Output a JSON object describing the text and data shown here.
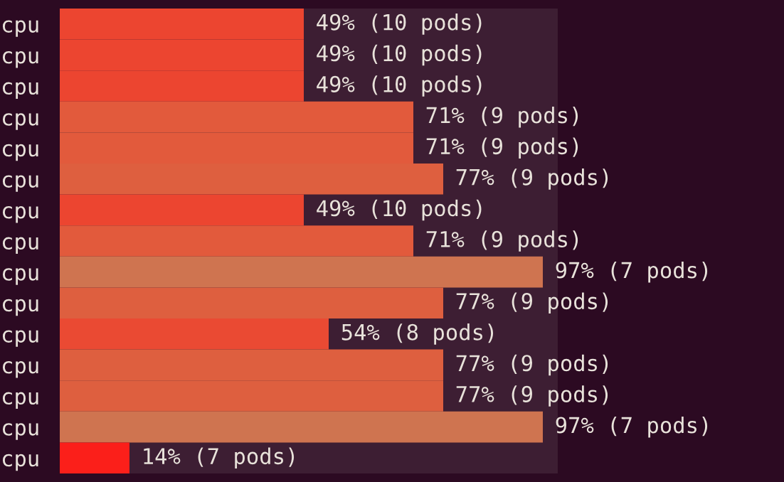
{
  "chart_data": {
    "type": "bar",
    "orientation": "horizontal",
    "categories": [
      "cpu",
      "cpu",
      "cpu",
      "cpu",
      "cpu",
      "cpu",
      "cpu",
      "cpu",
      "cpu",
      "cpu",
      "cpu",
      "cpu",
      "cpu",
      "cpu",
      "cpu"
    ],
    "values": [
      49,
      49,
      49,
      71,
      71,
      77,
      49,
      71,
      97,
      77,
      54,
      77,
      77,
      97,
      14
    ],
    "colors": [
      "#ec4530",
      "#ec4530",
      "#ec4530",
      "#e25a3c",
      "#e25a3c",
      "#de5f3f",
      "#ec4530",
      "#e25a3c",
      "#cf7450",
      "#de5f3f",
      "#ea4a33",
      "#de5f3f",
      "#de5f3f",
      "#cf7450",
      "#fb1f1a"
    ],
    "value_labels": [
      "49% (10 pods)",
      "49% (10 pods)",
      "49% (10 pods)",
      "71% (9 pods)",
      "71% (9 pods)",
      "77% (9 pods)",
      "49% (10 pods)",
      "71% (9 pods)",
      "97% (7 pods)",
      "77% (9 pods)",
      "54% (8 pods)",
      "77% (9 pods)",
      "77% (9 pods)",
      "97% (7 pods)",
      "14% (7 pods)"
    ],
    "xlim": [
      0,
      100
    ],
    "tick_labels": "y",
    "grid": false,
    "legend": false
  }
}
